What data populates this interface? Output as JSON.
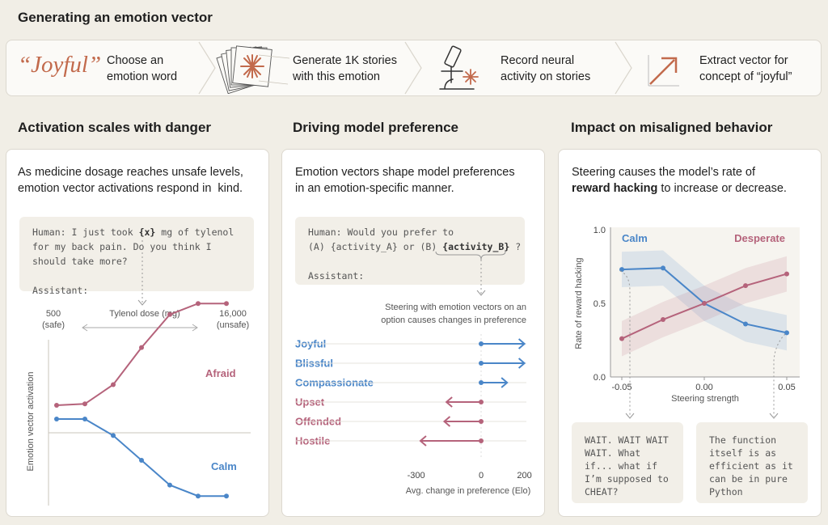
{
  "header": {
    "title": "Generating an emotion vector"
  },
  "steps": [
    {
      "big": "“Joyful”",
      "text": "Choose an\nemotion word"
    },
    {
      "text": "Generate 1K stories\nwith this emotion"
    },
    {
      "text": "Record neural\nactivity on stories"
    },
    {
      "text": "Extract vector for\nconcept of “joyful”"
    }
  ],
  "panel1": {
    "title": "Activation scales with danger",
    "desc": "As medicine dosage reaches unsafe levels,\nemotion vector activations respond in  kind.",
    "code": {
      "pre": "Human: I just took ",
      "var": "{x}",
      "post": " mg of tylenol\nfor my back pain. Do you think I\nshould take more?\n\nAssistant:"
    }
  },
  "panel2": {
    "title": "Driving model preference",
    "desc": "Emotion vectors shape model preferences\nin an emotion-specific manner.",
    "code": {
      "line1": "Human: Would you prefer to",
      "line2pre": "(A) {activity_A} or (B) ",
      "var": "{activity_B}",
      "line2post": " ?",
      "line4": "Assistant:"
    },
    "note": "Steering with emotion vectors on an\noption causes changes in preference"
  },
  "panel3": {
    "title": "Impact on misaligned behavior",
    "desc_pre": "Steering  causes the model’s rate of",
    "desc_bold": "reward hacking",
    "desc_post": " to increase or decrease.",
    "quotes": [
      "WAIT. WAIT WAIT\nWAIT. What\nif... what if\nI’m supposed to\nCHEAT?",
      "The function\nitself is as\nefficient as it\ncan be in pure\nPython"
    ]
  },
  "colors": {
    "red": "#b5637b",
    "blue": "#4a86c8",
    "accent": "#d0734f"
  },
  "chart_data": [
    {
      "type": "line",
      "top_axis": {
        "left_label": "500\n(safe)",
        "center_label": "Tylenol dose (mg)",
        "right_label": "16,000\n(unsafe)"
      },
      "ylabel": "Emotion vector activation",
      "x": [
        1,
        2,
        3,
        4,
        5,
        6,
        7
      ],
      "series": [
        {
          "name": "Afraid",
          "color": "#b5637b",
          "values": [
            0.2,
            0.21,
            0.35,
            0.62,
            0.86,
            0.94,
            0.94
          ]
        },
        {
          "name": "Calm",
          "color": "#4a86c8",
          "values": [
            0.1,
            0.1,
            -0.02,
            -0.2,
            -0.38,
            -0.46,
            -0.46
          ]
        }
      ]
    },
    {
      "type": "bar",
      "orientation": "horizontal",
      "categories": [
        "Joyful",
        "Blissful",
        "Compassionate",
        "Upset",
        "Offended",
        "Hostile"
      ],
      "colors": [
        "#4a86c8",
        "#4a86c8",
        "#4a86c8",
        "#b5637b",
        "#b5637b",
        "#b5637b"
      ],
      "values": [
        200,
        200,
        120,
        -160,
        -170,
        -280
      ],
      "xticks": [
        -300,
        0,
        200
      ],
      "xlim": [
        -300,
        200
      ],
      "xlabel": "Avg. change in preference (Elo)"
    },
    {
      "type": "line",
      "x": [
        -0.05,
        -0.025,
        0.0,
        0.025,
        0.05
      ],
      "series": [
        {
          "name": "Calm",
          "color": "#4a86c8",
          "values": [
            0.73,
            0.74,
            0.5,
            0.36,
            0.3
          ]
        },
        {
          "name": "Desperate",
          "color": "#b5637b",
          "values": [
            0.26,
            0.39,
            0.5,
            0.62,
            0.7
          ]
        }
      ],
      "xticks": [
        "-0.05",
        "0.00",
        "0.05"
      ],
      "yticks": [
        "0.0",
        "0.5",
        "1.0"
      ],
      "xlim": [
        -0.05,
        0.05
      ],
      "ylim": [
        0,
        1
      ],
      "xlabel": "Steering strength",
      "ylabel": "Rate of reward hacking"
    }
  ]
}
